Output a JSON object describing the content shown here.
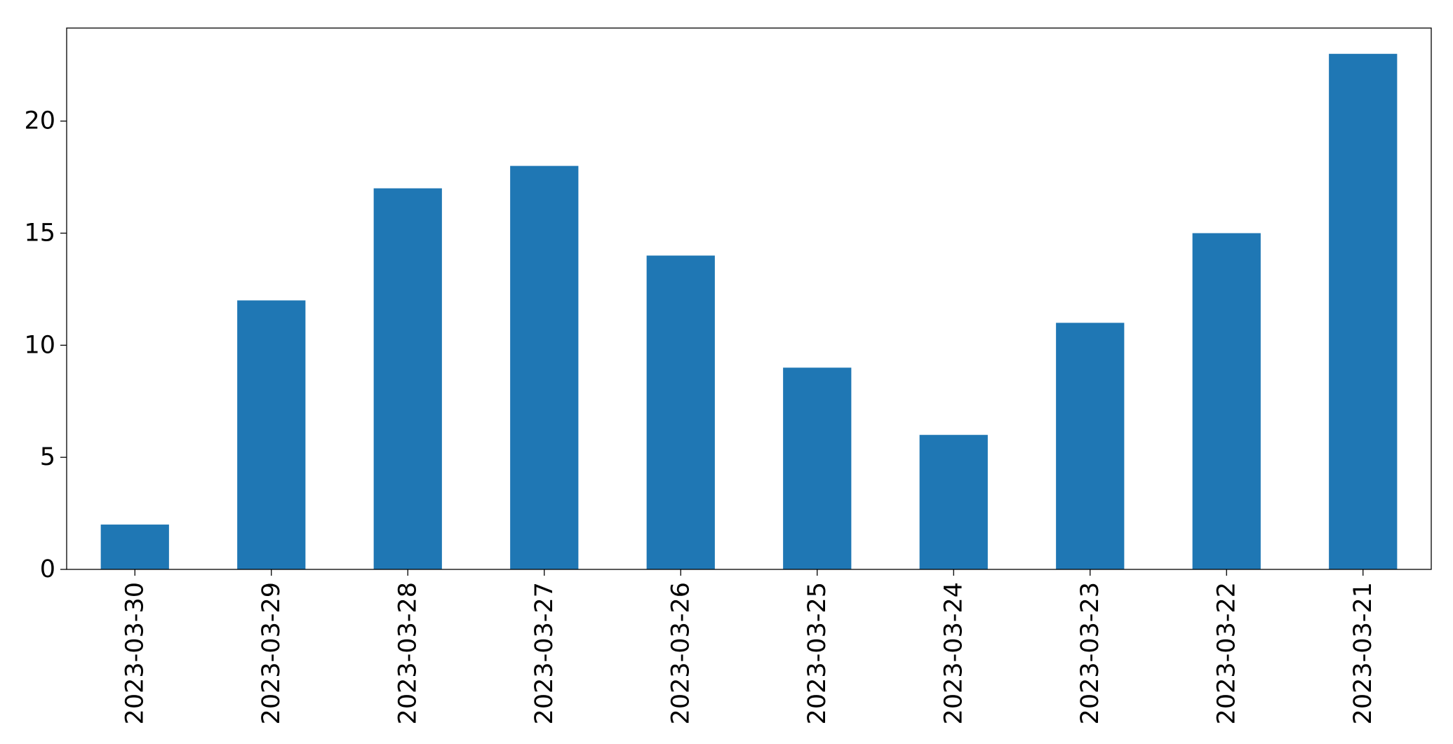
{
  "chart_data": {
    "type": "bar",
    "title": "",
    "xlabel": "",
    "ylabel": "",
    "categories": [
      "2023-03-30",
      "2023-03-29",
      "2023-03-28",
      "2023-03-27",
      "2023-03-26",
      "2023-03-25",
      "2023-03-24",
      "2023-03-23",
      "2023-03-22",
      "2023-03-21"
    ],
    "values": [
      2,
      12,
      17,
      18,
      14,
      9,
      6,
      11,
      15,
      23
    ],
    "ylim": [
      0,
      24.15
    ],
    "yticks": [
      0,
      5,
      10,
      15,
      20
    ],
    "grid": false,
    "legend": "none",
    "bar_color": "#1f77b4",
    "axis_color": "#000000",
    "x_tick_rotation": "vertical"
  }
}
